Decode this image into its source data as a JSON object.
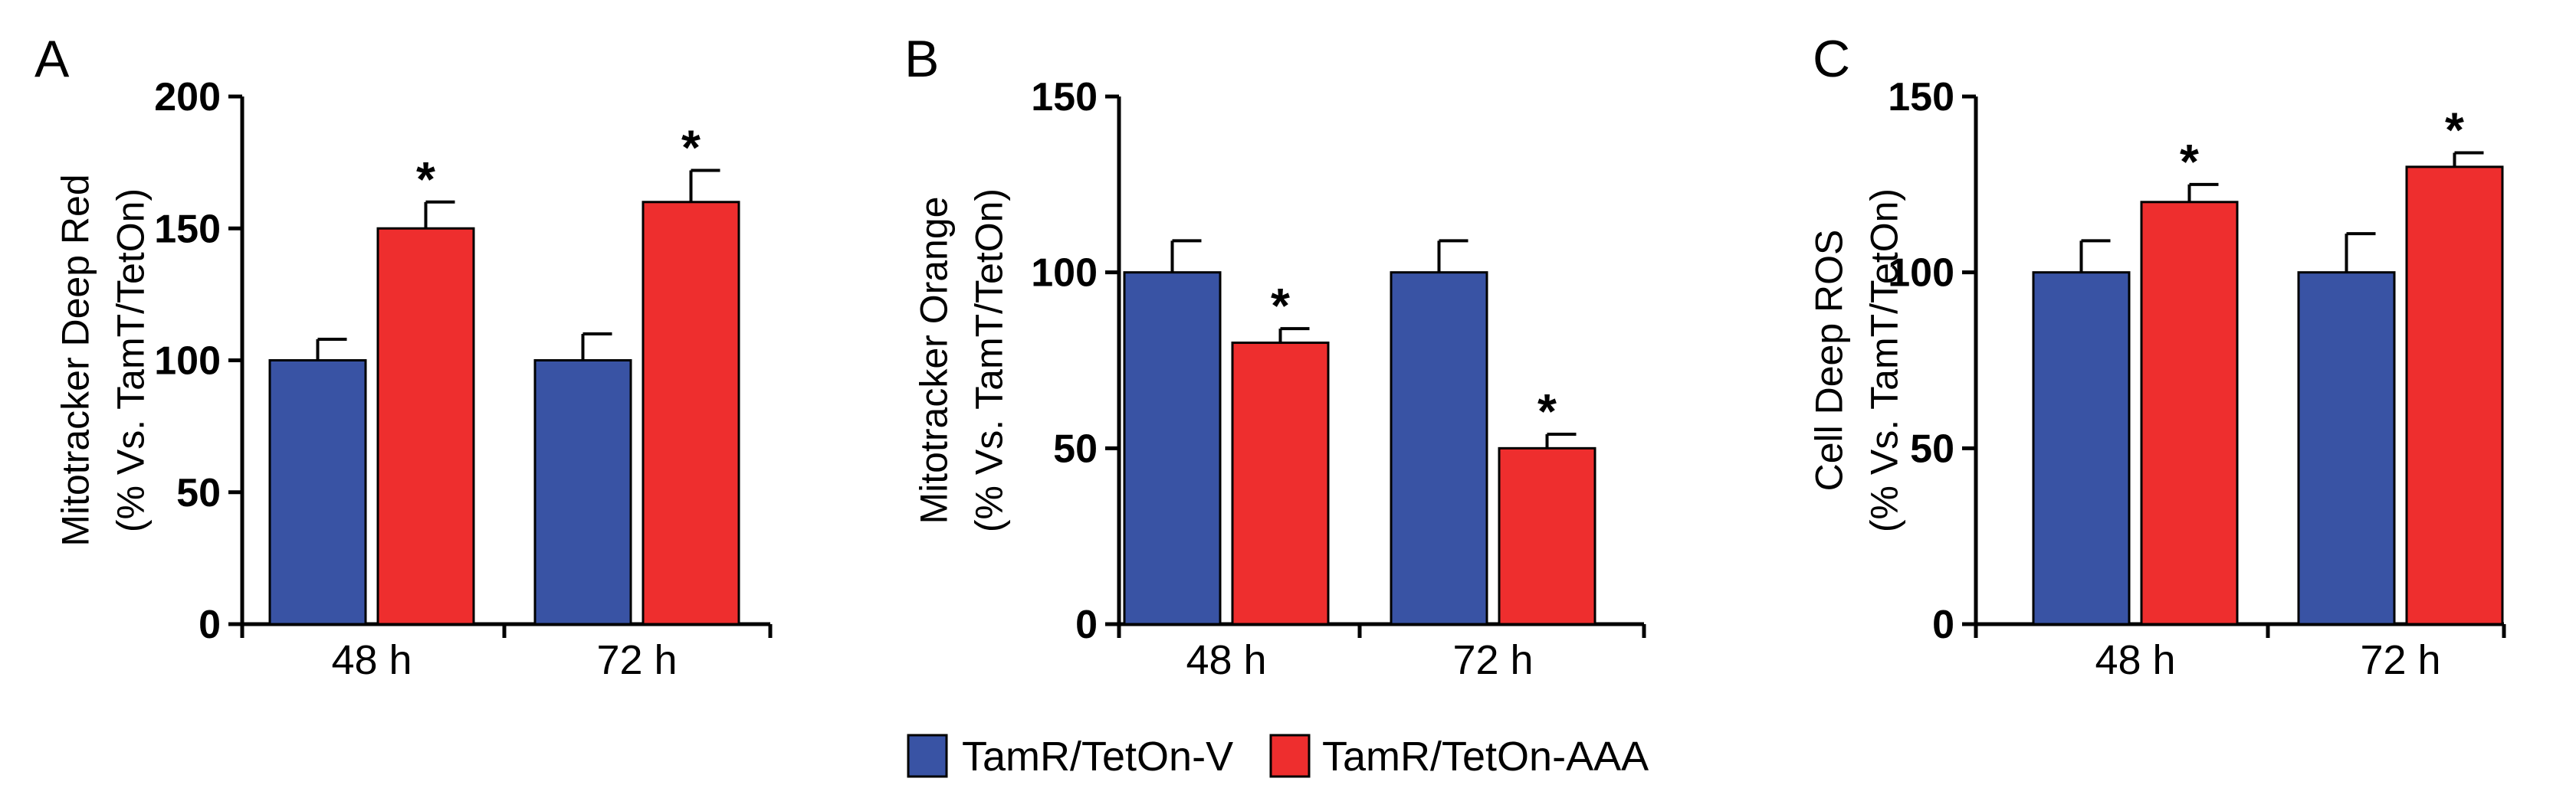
{
  "colors": {
    "series_v": "#3953a4",
    "series_aaa": "#ee2e2e",
    "axis": "#000000"
  },
  "legend": {
    "items": [
      "TamR/TetOn-V",
      "TamR/TetOn-AAA"
    ]
  },
  "chart_data": [
    {
      "panel": "A",
      "type": "bar",
      "ylabel": [
        "Mitotracker Deep Red",
        "(% Vs. TamT/TetOn)"
      ],
      "ylim": [
        0,
        200
      ],
      "yticks": [
        0,
        50,
        100,
        150,
        200
      ],
      "categories": [
        "48 h",
        "72 h"
      ],
      "series": [
        {
          "name": "TamR/TetOn-V",
          "values": [
            100,
            100
          ],
          "errors": [
            8,
            10
          ],
          "significant": [
            false,
            false
          ]
        },
        {
          "name": "TamR/TetOn-AAA",
          "values": [
            150,
            160
          ],
          "errors": [
            10,
            12
          ],
          "significant": [
            true,
            true
          ]
        }
      ],
      "sig_label": "*"
    },
    {
      "panel": "B",
      "type": "bar",
      "ylabel": [
        "Mitotracker Orange",
        "(% Vs. TamT/TetOn)"
      ],
      "ylim": [
        0,
        150
      ],
      "yticks": [
        0,
        50,
        100,
        150
      ],
      "categories": [
        "48 h",
        "72 h"
      ],
      "series": [
        {
          "name": "TamR/TetOn-V",
          "values": [
            100,
            100
          ],
          "errors": [
            9,
            9
          ],
          "significant": [
            false,
            false
          ]
        },
        {
          "name": "TamR/TetOn-AAA",
          "values": [
            80,
            50
          ],
          "errors": [
            4,
            4
          ],
          "significant": [
            true,
            true
          ]
        }
      ],
      "sig_label": "*"
    },
    {
      "panel": "C",
      "type": "bar",
      "ylabel": [
        "Cell Deep ROS",
        "(% Vs. TamT/TetOn)"
      ],
      "ylim": [
        0,
        150
      ],
      "yticks": [
        0,
        50,
        100,
        150
      ],
      "categories": [
        "48 h",
        "72 h"
      ],
      "series": [
        {
          "name": "TamR/TetOn-V",
          "values": [
            100,
            100
          ],
          "errors": [
            9,
            11
          ],
          "significant": [
            false,
            false
          ]
        },
        {
          "name": "TamR/TetOn-AAA",
          "values": [
            120,
            130
          ],
          "errors": [
            5,
            4
          ],
          "significant": [
            true,
            true
          ]
        }
      ],
      "sig_label": "*"
    }
  ]
}
